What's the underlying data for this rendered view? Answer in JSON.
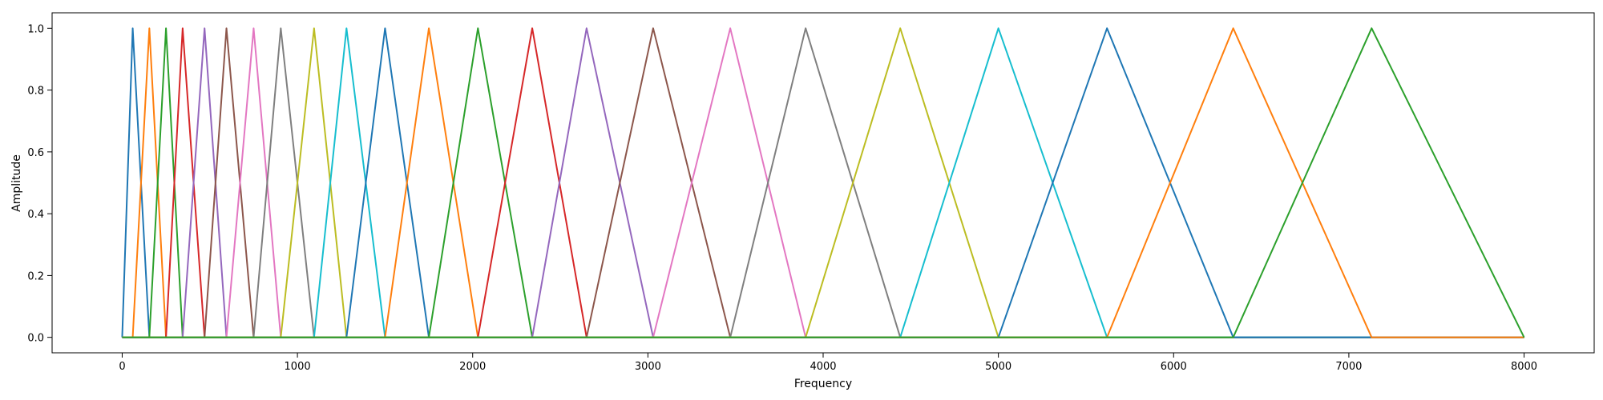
{
  "chart_data": {
    "type": "line",
    "title": "",
    "xlabel": "Frequency",
    "ylabel": "Amplitude",
    "xlim": [
      -400,
      8400
    ],
    "ylim": [
      -0.05,
      1.05
    ],
    "x_ticks": [
      0,
      1000,
      2000,
      3000,
      4000,
      5000,
      6000,
      7000,
      8000
    ],
    "x_tick_labels": [
      "0",
      "1000",
      "2000",
      "3000",
      "4000",
      "5000",
      "6000",
      "7000",
      "8000"
    ],
    "y_ticks": [
      0.0,
      0.2,
      0.4,
      0.6,
      0.8,
      1.0
    ],
    "y_tick_labels": [
      "0.0",
      "0.2",
      "0.4",
      "0.6",
      "0.8",
      "1.0"
    ],
    "grid": false,
    "legend": "none",
    "description_of_series": "23 triangular mel filters; each series rises from 0 at edges[i] to 1.0 at edges[i+1] and falls to 0 at edges[i+2], and is 0 elsewhere over the 0-8000 range",
    "filter_edges": [
      0,
      60,
      155,
      250,
      345,
      470,
      595,
      750,
      905,
      1095,
      1280,
      1500,
      1750,
      2030,
      2340,
      2650,
      3030,
      3470,
      3900,
      4440,
      5000,
      5620,
      6340,
      7130,
      8000
    ],
    "colors": [
      "#1f77b4",
      "#ff7f0e",
      "#2ca02c",
      "#d62728",
      "#9467bd",
      "#8c564b",
      "#e377c2",
      "#7f7f7f",
      "#bcbd22",
      "#17becf"
    ]
  }
}
